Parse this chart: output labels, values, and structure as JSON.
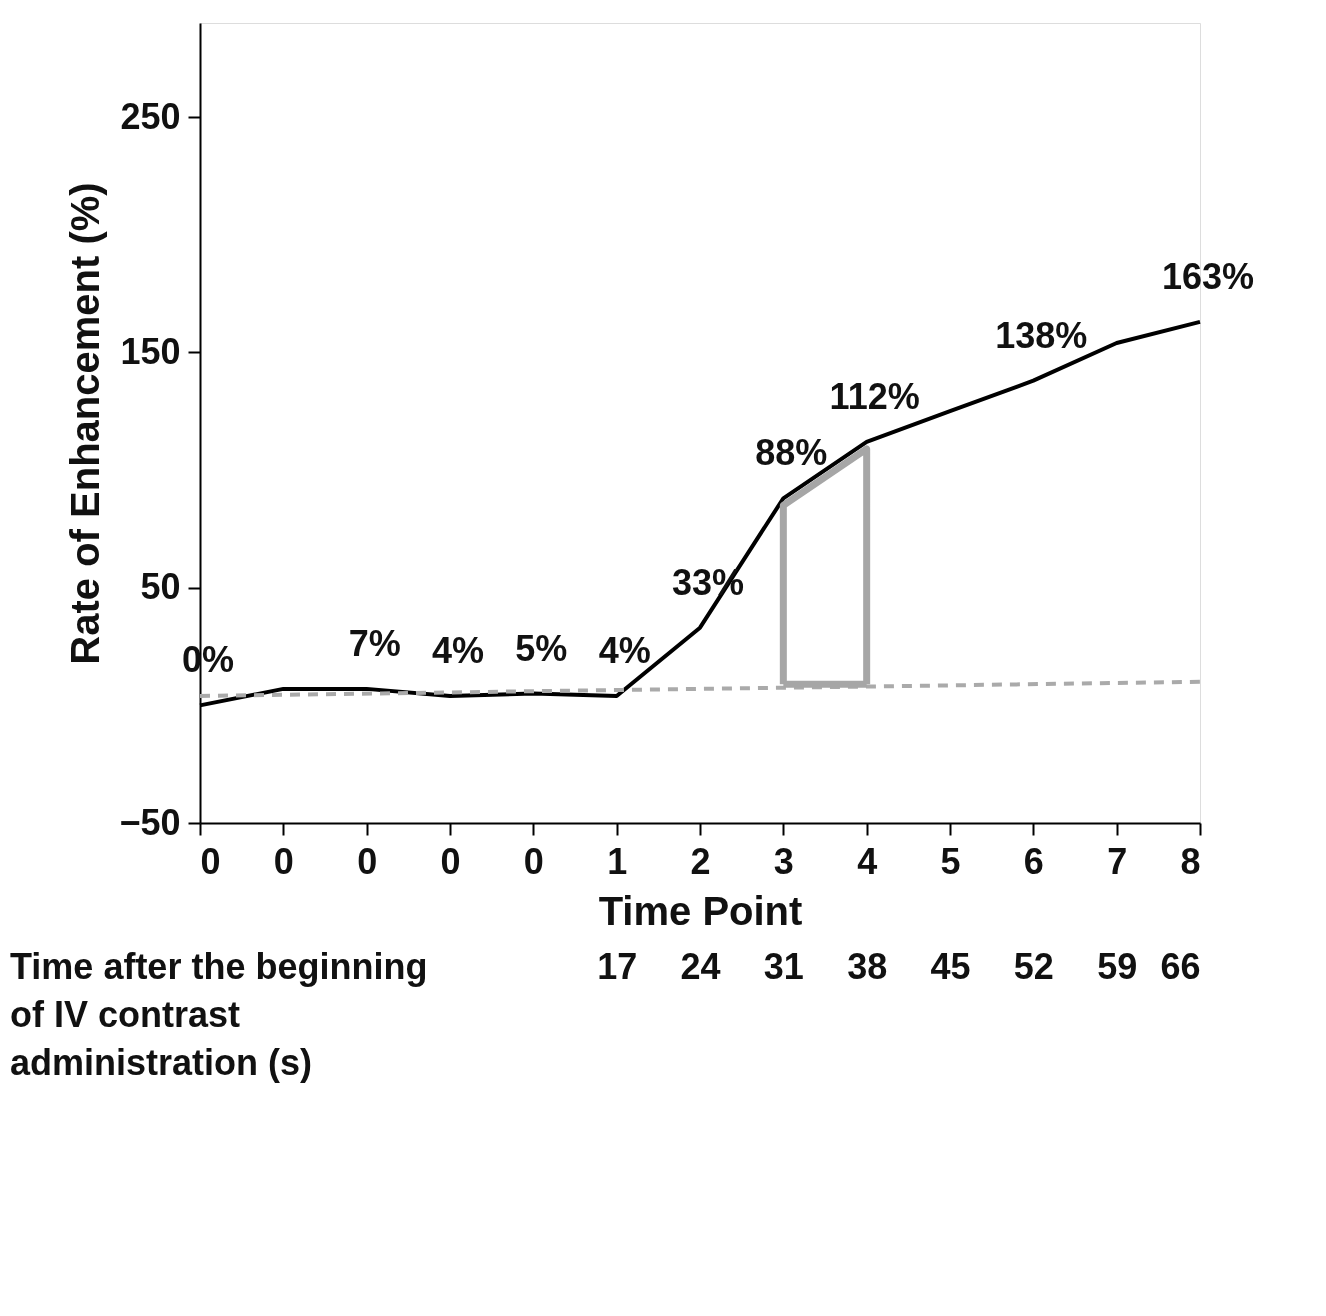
{
  "chart_data": {
    "type": "line",
    "xlabel": "Time Point",
    "ylabel": "Rate of Enhancement (%)",
    "categories": [
      "0",
      "0",
      "0",
      "0",
      "0",
      "1",
      "2",
      "3",
      "4",
      "5",
      "6",
      "7",
      "8"
    ],
    "ylim": [
      -50,
      290
    ],
    "yticks": [
      {
        "value": -50,
        "label": "−50"
      },
      50,
      150,
      250
    ],
    "x2lim": [
      -18,
      66
    ],
    "x2ticks": [
      17,
      24,
      31,
      38,
      45,
      52,
      59,
      66
    ],
    "x2label": "Time after the beginning of IV contrast administration (s)",
    "series": [
      {
        "values": [
          0,
          7,
          7,
          4,
          5,
          4,
          33,
          88,
          112,
          125,
          138,
          154,
          163
        ],
        "color": "#000000",
        "value_labels": [
          "0%",
          null,
          "7%",
          "4%",
          "5%",
          "4%",
          "33%",
          "88%",
          "112%",
          null,
          "138%",
          null,
          "163%"
        ]
      },
      {
        "x": [
          "0",
          "8"
        ],
        "values": [
          4,
          10
        ],
        "color": "#aaaaaa",
        "line_style": "dashed"
      },
      {
        "x": [
          "3",
          "3",
          "4",
          "4"
        ],
        "values": [
          9,
          85,
          109,
          9
        ],
        "color": "#a6a6a6"
      },
      {
        "x": [
          "3",
          "4"
        ],
        "values": [
          9,
          9
        ],
        "color": "#a6a6a6"
      }
    ],
    "grid": false,
    "marker": "none"
  }
}
